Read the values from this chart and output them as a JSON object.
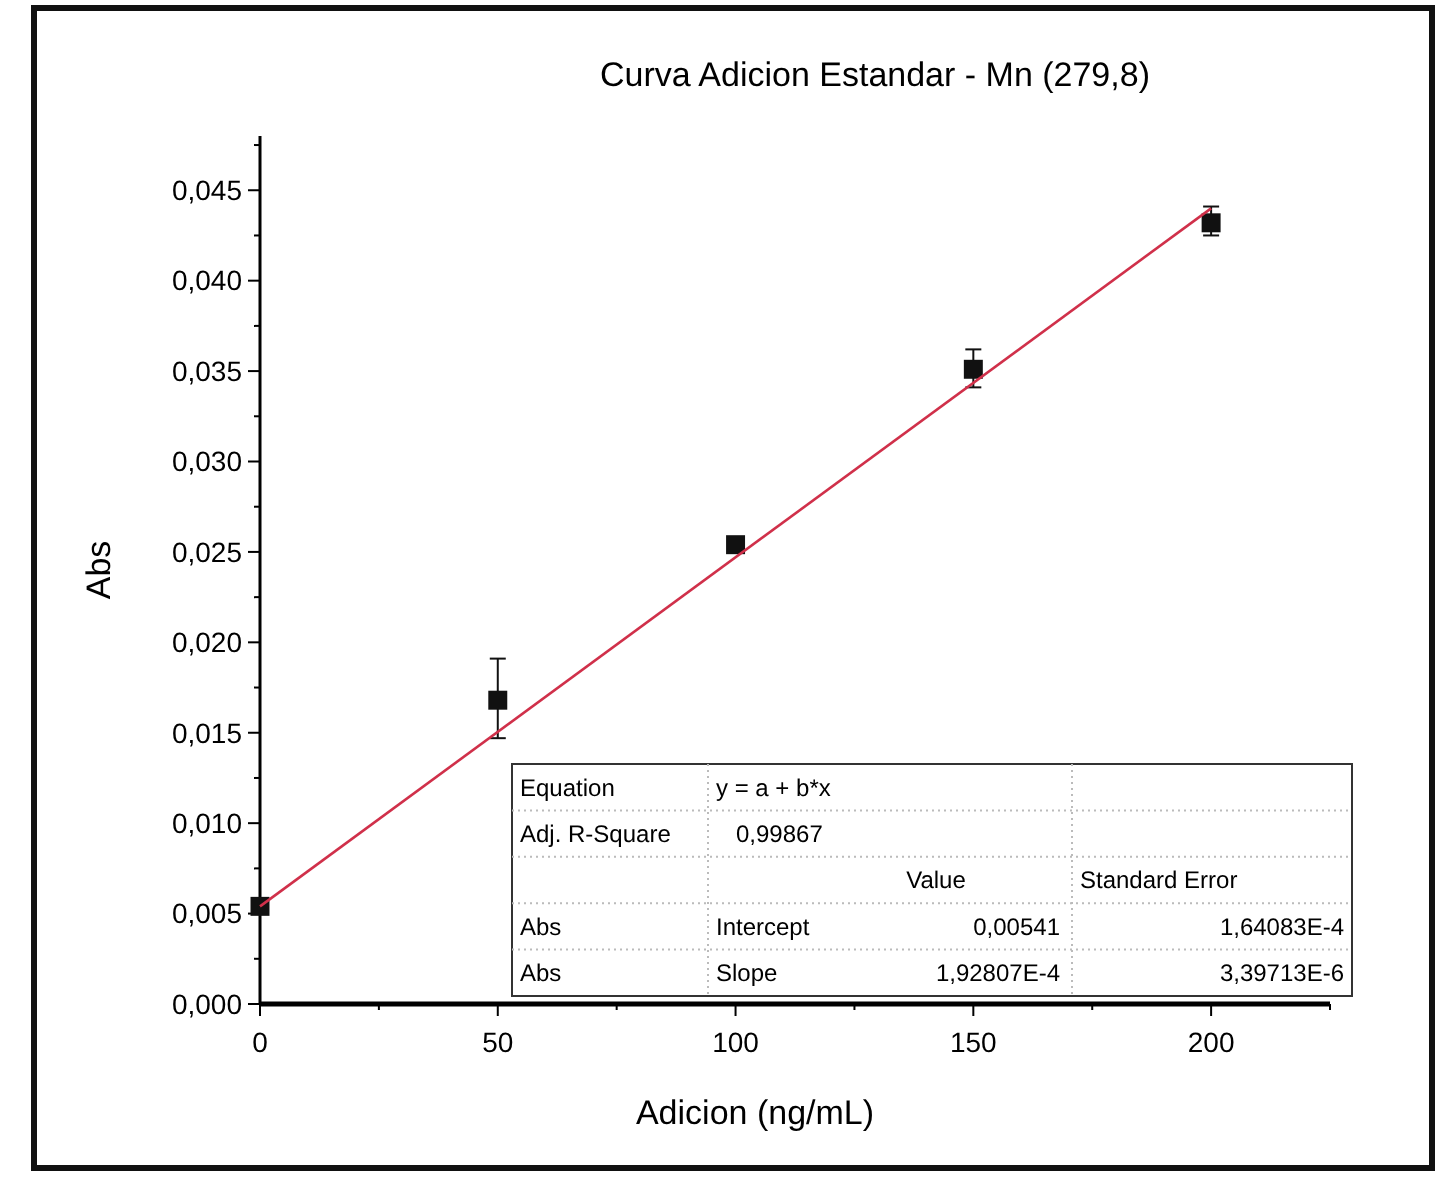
{
  "chart_data": {
    "type": "scatter",
    "title": "Curva Adicion Estandar - Mn (279,8)",
    "xlabel": "Adicion (ng/mL)",
    "ylabel": "Abs",
    "x": [
      0,
      50,
      100,
      150,
      200
    ],
    "series": [
      {
        "marker": "square",
        "color": "#111111",
        "values": [
          0.0054,
          0.0168,
          0.0254,
          0.0351,
          0.0432
        ],
        "errors": [
          null,
          [
            0.0147,
            0.0191
          ],
          [
            0.025,
            0.0258
          ],
          [
            0.0341,
            0.0362
          ],
          [
            0.0425,
            0.0441
          ]
        ]
      },
      {
        "type": "line",
        "color": "#d0304a",
        "x": [
          0,
          200
        ],
        "values": [
          0.0054,
          0.044
        ]
      }
    ],
    "xlim": [
      0,
      225
    ],
    "xticks": [
      0,
      {
        "value": 25,
        "label": null
      },
      50,
      {
        "value": 75,
        "label": null
      },
      100,
      {
        "value": 125,
        "label": null
      },
      150,
      {
        "value": 175,
        "label": null
      },
      200,
      {
        "value": 225,
        "label": null
      }
    ],
    "ylim": [
      0,
      0.048
    ],
    "yticks": [
      {
        "value": 0,
        "label": "0,000"
      },
      {
        "value": 0.0025,
        "label": null
      },
      {
        "value": 0.005,
        "label": "0,005"
      },
      {
        "value": 0.0075,
        "label": null
      },
      {
        "value": 0.01,
        "label": "0,010"
      },
      {
        "value": 0.0125,
        "label": null
      },
      {
        "value": 0.015,
        "label": "0,015"
      },
      {
        "value": 0.0175,
        "label": null
      },
      {
        "value": 0.02,
        "label": "0,020"
      },
      {
        "value": 0.0225,
        "label": null
      },
      {
        "value": 0.025,
        "label": "0,025"
      },
      {
        "value": 0.0275,
        "label": null
      },
      {
        "value": 0.03,
        "label": "0,030"
      },
      {
        "value": 0.0325,
        "label": null
      },
      {
        "value": 0.035,
        "label": "0,035"
      },
      {
        "value": 0.0375,
        "label": null
      },
      {
        "value": 0.04,
        "label": "0,040"
      },
      {
        "value": 0.0425,
        "label": null
      },
      {
        "value": 0.045,
        "label": "0,045"
      },
      {
        "value": 0.0475,
        "label": null
      }
    ],
    "annotations": [
      "Equation",
      "y = a + b*x",
      "Adj. R-Square",
      "0,99867",
      "Value",
      "Standard Error",
      "Abs",
      "Intercept",
      "0,00541",
      "1,64083E-4",
      "Abs",
      "Slope",
      "1,92807E-4",
      "3,39713E-6"
    ]
  }
}
